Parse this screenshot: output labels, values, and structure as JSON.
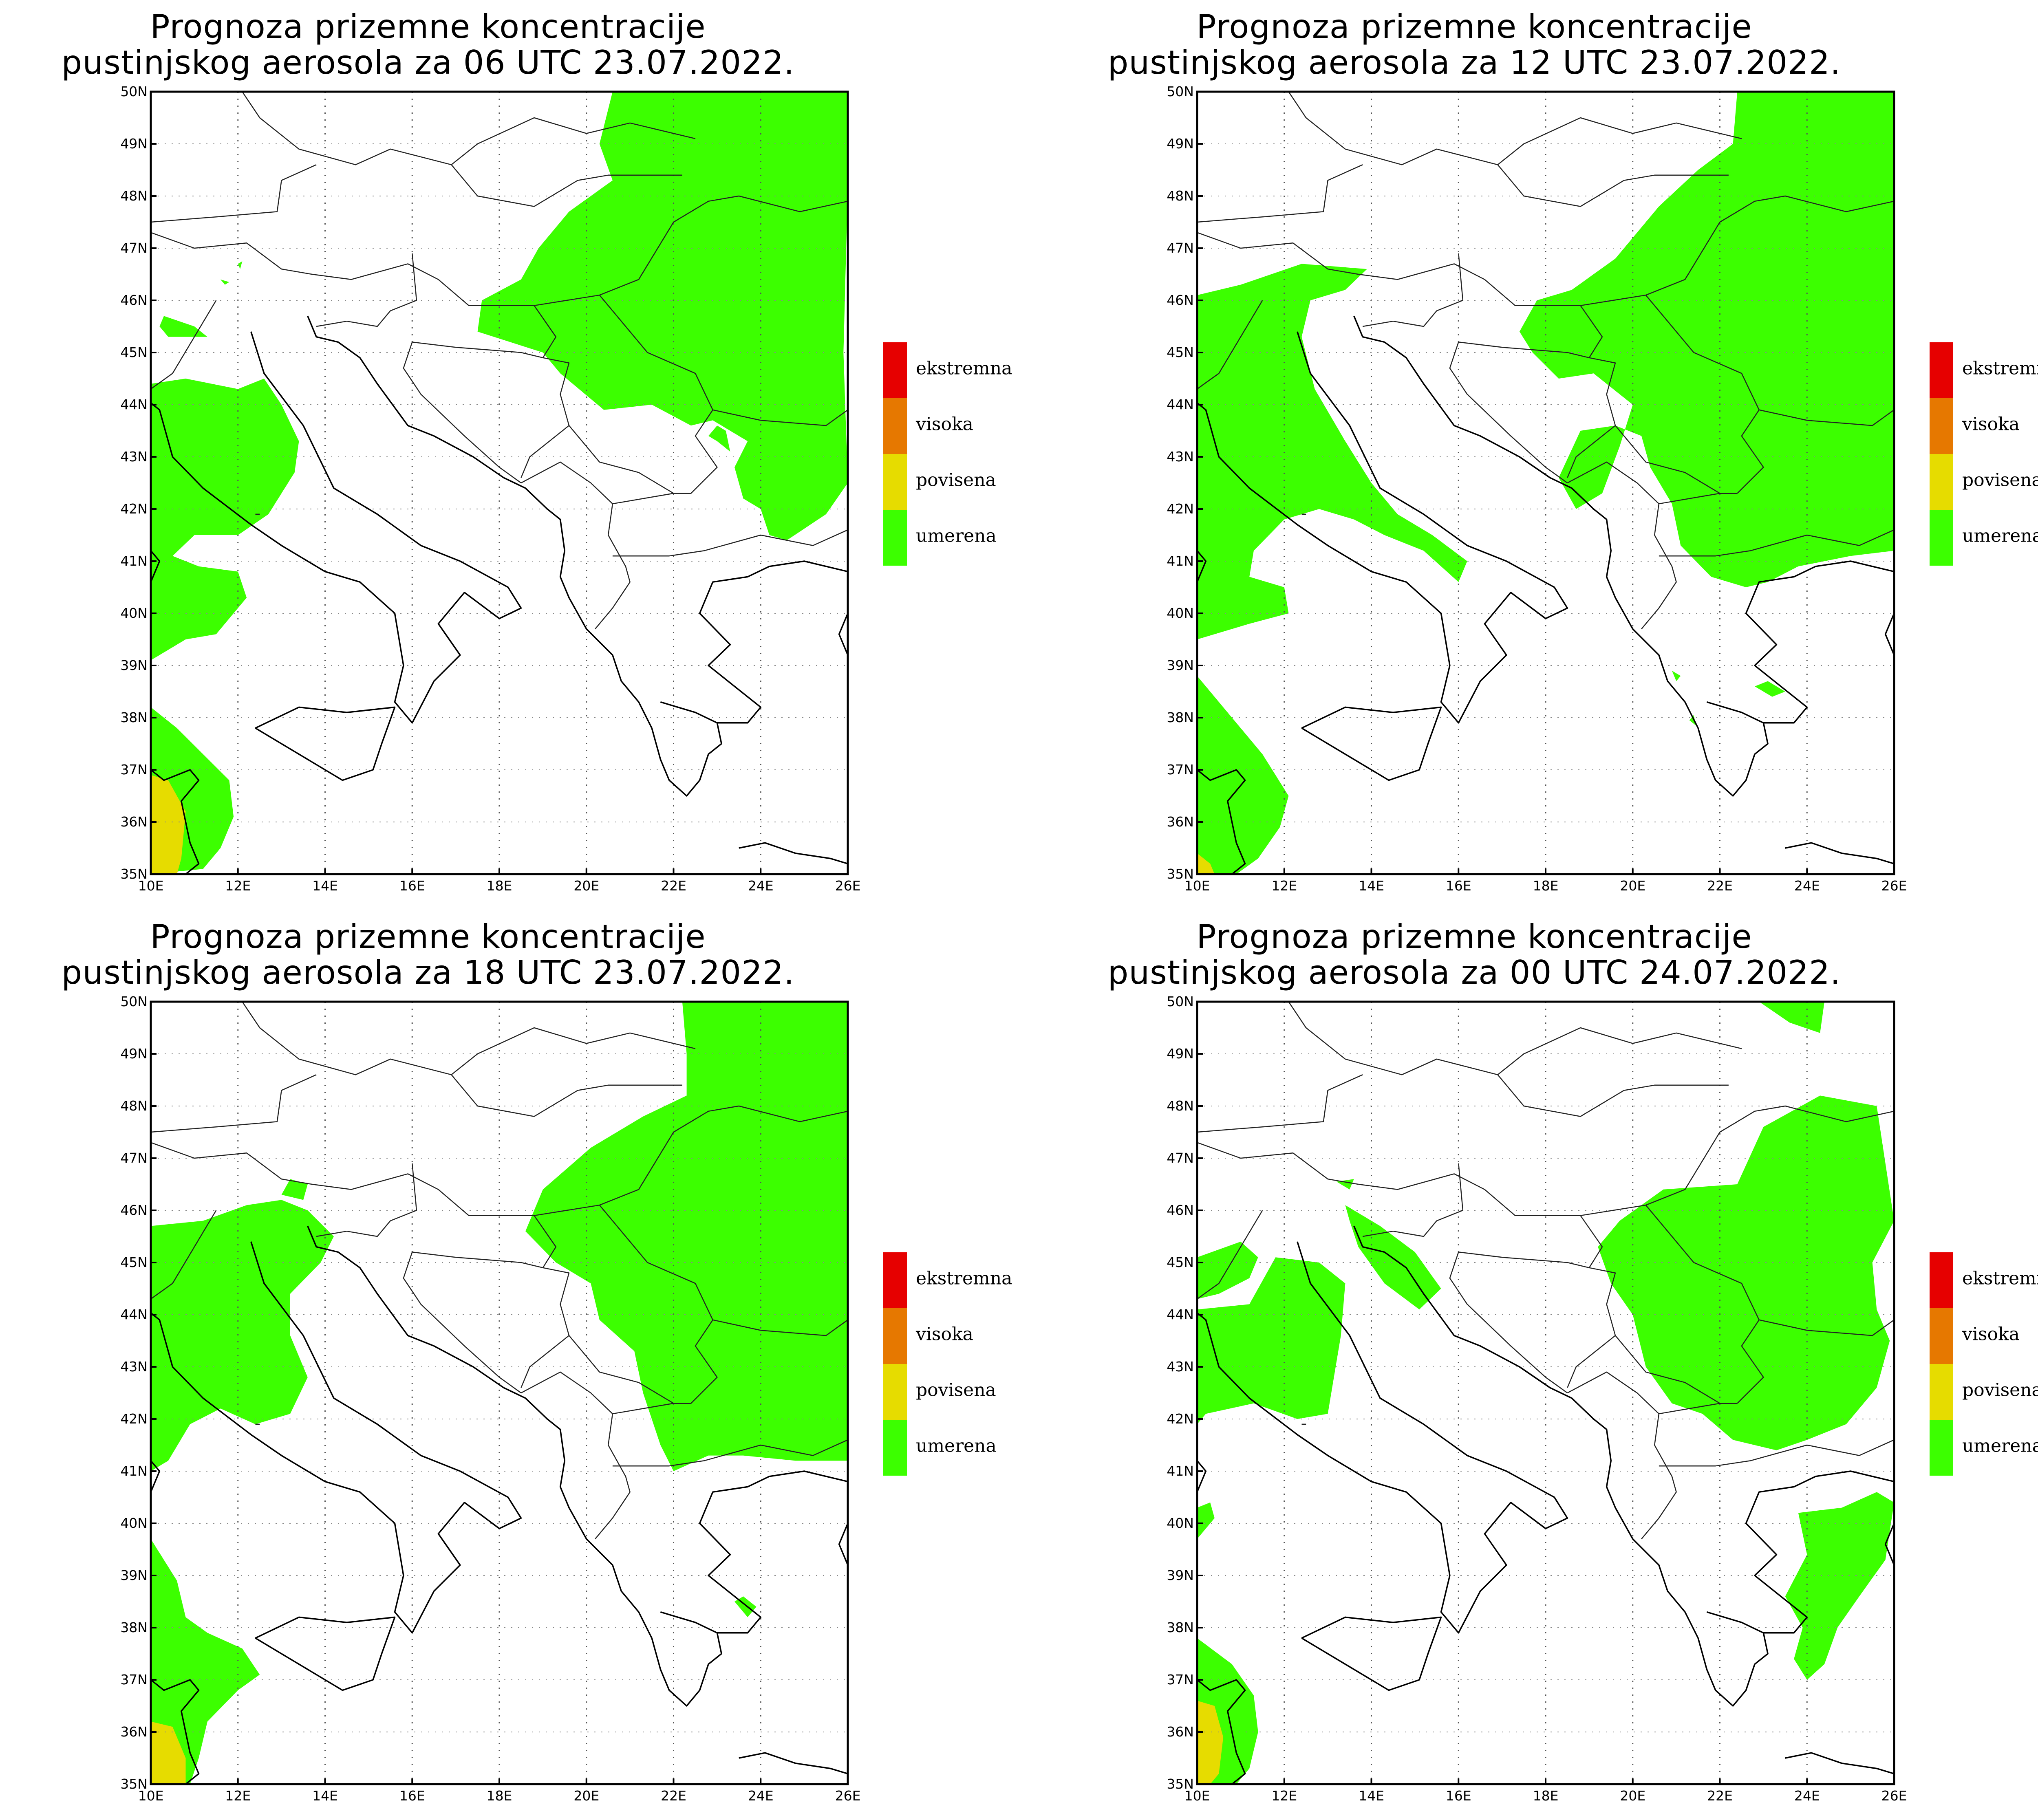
{
  "panels": [
    {
      "title_line1": "Prognoza prizemne koncentracije",
      "title_line2": "pustinjskog aerosola za 06 UTC 23.07.2022."
    },
    {
      "title_line1": "Prognoza prizemne koncentracije",
      "title_line2": "pustinjskog aerosola za 12 UTC 23.07.2022."
    },
    {
      "title_line1": "Prognoza prizemne koncentracije",
      "title_line2": "pustinjskog aerosola za 18 UTC 23.07.2022."
    },
    {
      "title_line1": "Prognoza prizemne koncentracije",
      "title_line2": "pustinjskog aerosola za 00 UTC 24.07.2022."
    }
  ],
  "legend": [
    {
      "label": "ekstremna",
      "color": "#e60000"
    },
    {
      "label": "visoka",
      "color": "#e67800"
    },
    {
      "label": "povisena",
      "color": "#e6dc00"
    },
    {
      "label": "umerena",
      "color": "#3cff00"
    }
  ],
  "lat_ticks": [
    "35N",
    "36N",
    "37N",
    "38N",
    "39N",
    "40N",
    "41N",
    "42N",
    "43N",
    "44N",
    "45N",
    "46N",
    "47N",
    "48N",
    "49N",
    "50N"
  ],
  "lon_ticks": [
    "10E",
    "12E",
    "14E",
    "16E",
    "18E",
    "20E",
    "22E",
    "24E",
    "26E"
  ],
  "map_extent": {
    "lon": [
      10,
      26
    ],
    "lat": [
      35,
      50
    ]
  }
}
